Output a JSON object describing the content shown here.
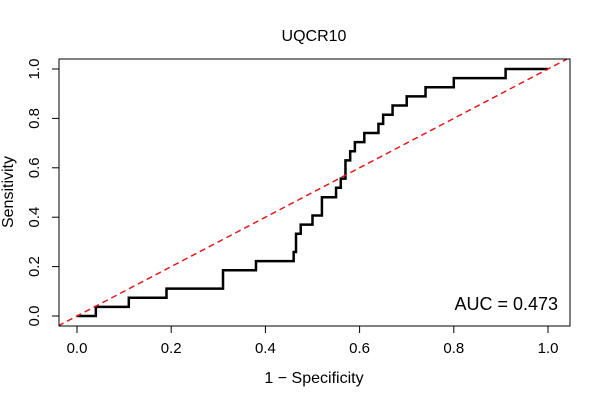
{
  "chart_data": {
    "type": "line",
    "title": "UQCR10",
    "xlabel": "1 − Specificity",
    "ylabel": "Sensitivity",
    "xlim": [
      0,
      1
    ],
    "ylim": [
      0,
      1
    ],
    "x_ticks": [
      0.0,
      0.2,
      0.4,
      0.6,
      0.8,
      1.0
    ],
    "x_tick_labels": [
      "0.0",
      "0.2",
      "0.4",
      "0.6",
      "0.8",
      "1.0"
    ],
    "y_ticks": [
      0.0,
      0.2,
      0.4,
      0.6,
      0.8,
      1.0
    ],
    "y_tick_labels": [
      "0.0",
      "0.2",
      "0.4",
      "0.6",
      "0.8",
      "1.0"
    ],
    "grid": false,
    "annotation": "AUC = 0.473",
    "annotation_position": "bottom-right",
    "series": [
      {
        "name": "ROC curve",
        "style": "solid",
        "color": "#000000",
        "x": [
          0.0,
          0.04,
          0.04,
          0.11,
          0.11,
          0.19,
          0.19,
          0.31,
          0.31,
          0.38,
          0.38,
          0.46,
          0.46,
          0.465,
          0.465,
          0.475,
          0.475,
          0.5,
          0.5,
          0.52,
          0.52,
          0.55,
          0.55,
          0.56,
          0.56,
          0.57,
          0.57,
          0.58,
          0.58,
          0.59,
          0.59,
          0.61,
          0.61,
          0.64,
          0.64,
          0.65,
          0.65,
          0.67,
          0.67,
          0.7,
          0.7,
          0.74,
          0.74,
          0.8,
          0.8,
          0.91,
          0.91,
          0.95,
          0.95,
          1.0
        ],
        "y": [
          0.0,
          0.0,
          0.037,
          0.037,
          0.074,
          0.074,
          0.111,
          0.111,
          0.185,
          0.185,
          0.222,
          0.222,
          0.259,
          0.259,
          0.333,
          0.333,
          0.37,
          0.37,
          0.407,
          0.407,
          0.481,
          0.481,
          0.519,
          0.519,
          0.556,
          0.556,
          0.63,
          0.63,
          0.667,
          0.667,
          0.704,
          0.704,
          0.741,
          0.741,
          0.778,
          0.778,
          0.815,
          0.815,
          0.852,
          0.852,
          0.889,
          0.889,
          0.926,
          0.926,
          0.963,
          0.963,
          1.0,
          1.0,
          1.0,
          1.0
        ]
      },
      {
        "name": "Reference diagonal",
        "style": "dashed",
        "color": "#e31a1c",
        "x": [
          -0.04,
          1.04
        ],
        "y": [
          -0.04,
          1.04
        ]
      }
    ]
  }
}
